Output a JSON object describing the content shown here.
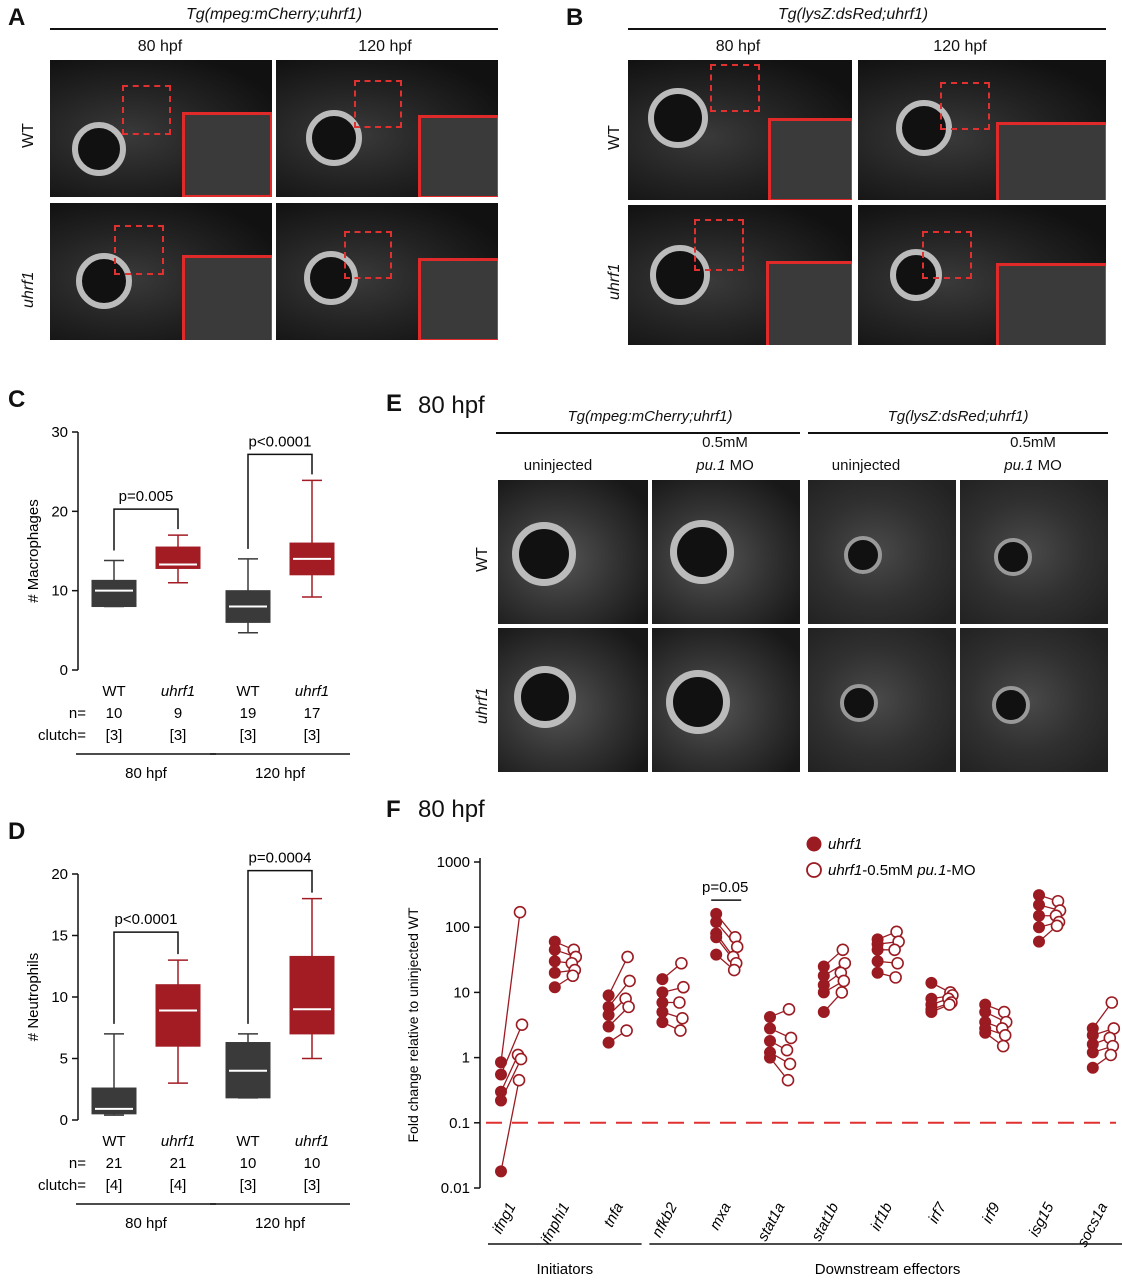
{
  "panelA": {
    "letter": "A",
    "title": "Tg(mpeg:mCherry;uhrf1)",
    "col_labels": [
      "80 hpf",
      "120 hpf"
    ],
    "row_labels": [
      "WT",
      "uhrf1"
    ]
  },
  "panelB": {
    "letter": "B",
    "title": "Tg(lysZ:dsRed;uhrf1)",
    "col_labels": [
      "80 hpf",
      "120 hpf"
    ],
    "row_labels": [
      "WT",
      "uhrf1"
    ]
  },
  "panelC": {
    "letter": "C",
    "chart_data": {
      "type": "box",
      "ylabel": "# Macrophages",
      "ylim": [
        0,
        30
      ],
      "yticks": [
        0,
        10,
        20,
        30
      ],
      "groups": [
        {
          "label": "WT",
          "n": "10",
          "clutch": "[3]",
          "time": "80 hpf",
          "color": "#3a3a3a",
          "min": 8,
          "q1": 8,
          "median": 10,
          "q3": 11.3,
          "max": 13.8
        },
        {
          "label": "uhrf1",
          "n": "9",
          "clutch": "[3]",
          "time": "80 hpf",
          "color": "#a31c24",
          "min": 11,
          "q1": 12.8,
          "median": 13.3,
          "q3": 15.5,
          "max": 17
        },
        {
          "label": "WT",
          "n": "19",
          "clutch": "[3]",
          "time": "120 hpf",
          "color": "#3a3a3a",
          "min": 4.7,
          "q1": 6,
          "median": 8,
          "q3": 10,
          "max": 14
        },
        {
          "label": "uhrf1",
          "n": "17",
          "clutch": "[3]",
          "time": "120 hpf",
          "color": "#a31c24",
          "min": 9.2,
          "q1": 12,
          "median": 14,
          "q3": 16,
          "max": 23.9
        }
      ],
      "comparisons": [
        {
          "between": [
            0,
            1
          ],
          "label": "p=0.005"
        },
        {
          "between": [
            2,
            3
          ],
          "label": "p<0.0001"
        }
      ],
      "row_labels": {
        "n": "n=",
        "clutch": "clutch="
      },
      "time_labels": [
        "80 hpf",
        "120 hpf"
      ]
    }
  },
  "panelD": {
    "letter": "D",
    "chart_data": {
      "type": "box",
      "ylabel": "# Neutrophils",
      "ylim": [
        0,
        20
      ],
      "yticks": [
        0,
        5,
        10,
        15,
        20
      ],
      "groups": [
        {
          "label": "WT",
          "n": "21",
          "clutch": "[4]",
          "time": "80 hpf",
          "color": "#3a3a3a",
          "min": 0.4,
          "q1": 0.5,
          "median": 0.9,
          "q3": 2.6,
          "max": 7
        },
        {
          "label": "uhrf1",
          "n": "21",
          "clutch": "[4]",
          "time": "80 hpf",
          "color": "#a31c24",
          "min": 3,
          "q1": 6,
          "median": 8.9,
          "q3": 11,
          "max": 13
        },
        {
          "label": "WT",
          "n": "10",
          "clutch": "[3]",
          "time": "120 hpf",
          "color": "#3a3a3a",
          "min": 1.8,
          "q1": 1.8,
          "median": 4,
          "q3": 6.3,
          "max": 7
        },
        {
          "label": "uhrf1",
          "n": "10",
          "clutch": "[3]",
          "time": "120 hpf",
          "color": "#a31c24",
          "min": 5,
          "q1": 7,
          "median": 9,
          "q3": 13.3,
          "max": 18
        }
      ],
      "comparisons": [
        {
          "between": [
            0,
            1
          ],
          "label": "p<0.0001"
        },
        {
          "between": [
            2,
            3
          ],
          "label": "p=0.0004"
        }
      ],
      "row_labels": {
        "n": "n=",
        "clutch": "clutch="
      },
      "time_labels": [
        "80 hpf",
        "120 hpf"
      ]
    }
  },
  "panelE": {
    "letter": "E",
    "time": "80 hpf",
    "group_titles": [
      "Tg(mpeg:mCherry;uhrf1)",
      "Tg(lysZ:dsRed;uhrf1)"
    ],
    "col_labels_top": [
      "",
      "0.5mM",
      "",
      "0.5mM"
    ],
    "col_labels": [
      "uninjected",
      "pu.1",
      "uninjected",
      "pu.1"
    ],
    "mo_suffix": " MO",
    "row_labels": [
      "WT",
      "uhrf1"
    ]
  },
  "panelF": {
    "letter": "F",
    "time": "80 hpf",
    "chart_data": {
      "type": "scatter",
      "ylabel": "Fold change relative to uninjected WT",
      "yscale": "log",
      "ylim": [
        0.01,
        1000
      ],
      "yticks": [
        "0.01",
        "0.1",
        "1",
        "10",
        "100",
        "1000"
      ],
      "reference_line": 0.1,
      "legend": [
        {
          "marker": "filled",
          "label": "uhrf1"
        },
        {
          "marker": "open",
          "label_italic": "uhrf1",
          "label_plain": "-0.5mM ",
          "label_italic2": "pu.1",
          "label_plain2": "-MO"
        }
      ],
      "annotation": "p=0.05",
      "categories": [
        "ifng1",
        "ifnphi1",
        "tnfa",
        "nfkb2",
        "mxa",
        "stat1a",
        "stat1b",
        "irf1b",
        "irf7",
        "irf9",
        "isg15",
        "socs1a"
      ],
      "groups": [
        {
          "label": "Initiators",
          "span": [
            0,
            2
          ]
        },
        {
          "label": "Downstream effectors",
          "span": [
            3,
            11
          ]
        }
      ],
      "series": [
        {
          "name": "uhrf1",
          "values": [
            [
              0.85,
              0.55,
              0.3,
              0.22,
              0.018
            ],
            [
              60,
              45,
              30,
              20,
              12
            ],
            [
              9,
              6,
              4.5,
              3,
              1.7
            ],
            [
              16,
              10,
              7,
              5,
              3.5
            ],
            [
              160,
              120,
              80,
              70,
              38
            ],
            [
              4.2,
              2.8,
              1.8,
              1.2,
              1.0
            ],
            [
              25,
              18,
              13,
              10,
              5
            ],
            [
              65,
              55,
              45,
              30,
              20
            ],
            [
              14,
              8,
              6.5,
              5.5,
              5
            ],
            [
              6.5,
              5,
              3.5,
              2.8,
              2.4
            ],
            [
              310,
              220,
              150,
              100,
              60
            ],
            [
              2.8,
              2.2,
              1.6,
              1.2,
              0.7
            ]
          ]
        },
        {
          "name": "uhrf1-0.5mM pu.1-MO",
          "values": [
            [
              170,
              3.2,
              1.1,
              0.95,
              0.45
            ],
            [
              45,
              35,
              28,
              22,
              18
            ],
            [
              35,
              15,
              8,
              6,
              2.6
            ],
            [
              28,
              12,
              7,
              4,
              2.6
            ],
            [
              70,
              50,
              35,
              28,
              22
            ],
            [
              5.5,
              2,
              1.3,
              0.8,
              0.45
            ],
            [
              45,
              28,
              20,
              15,
              10
            ],
            [
              85,
              60,
              45,
              28,
              17
            ],
            [
              10,
              9,
              8,
              7,
              6.5
            ],
            [
              5,
              3.5,
              2.8,
              2.2,
              1.5
            ],
            [
              250,
              180,
              150,
              120,
              105
            ],
            [
              7,
              2.8,
              2,
              1.5,
              1.1
            ]
          ]
        }
      ],
      "colors": {
        "series": "#9b1b22",
        "refline": "#e03030"
      }
    }
  }
}
